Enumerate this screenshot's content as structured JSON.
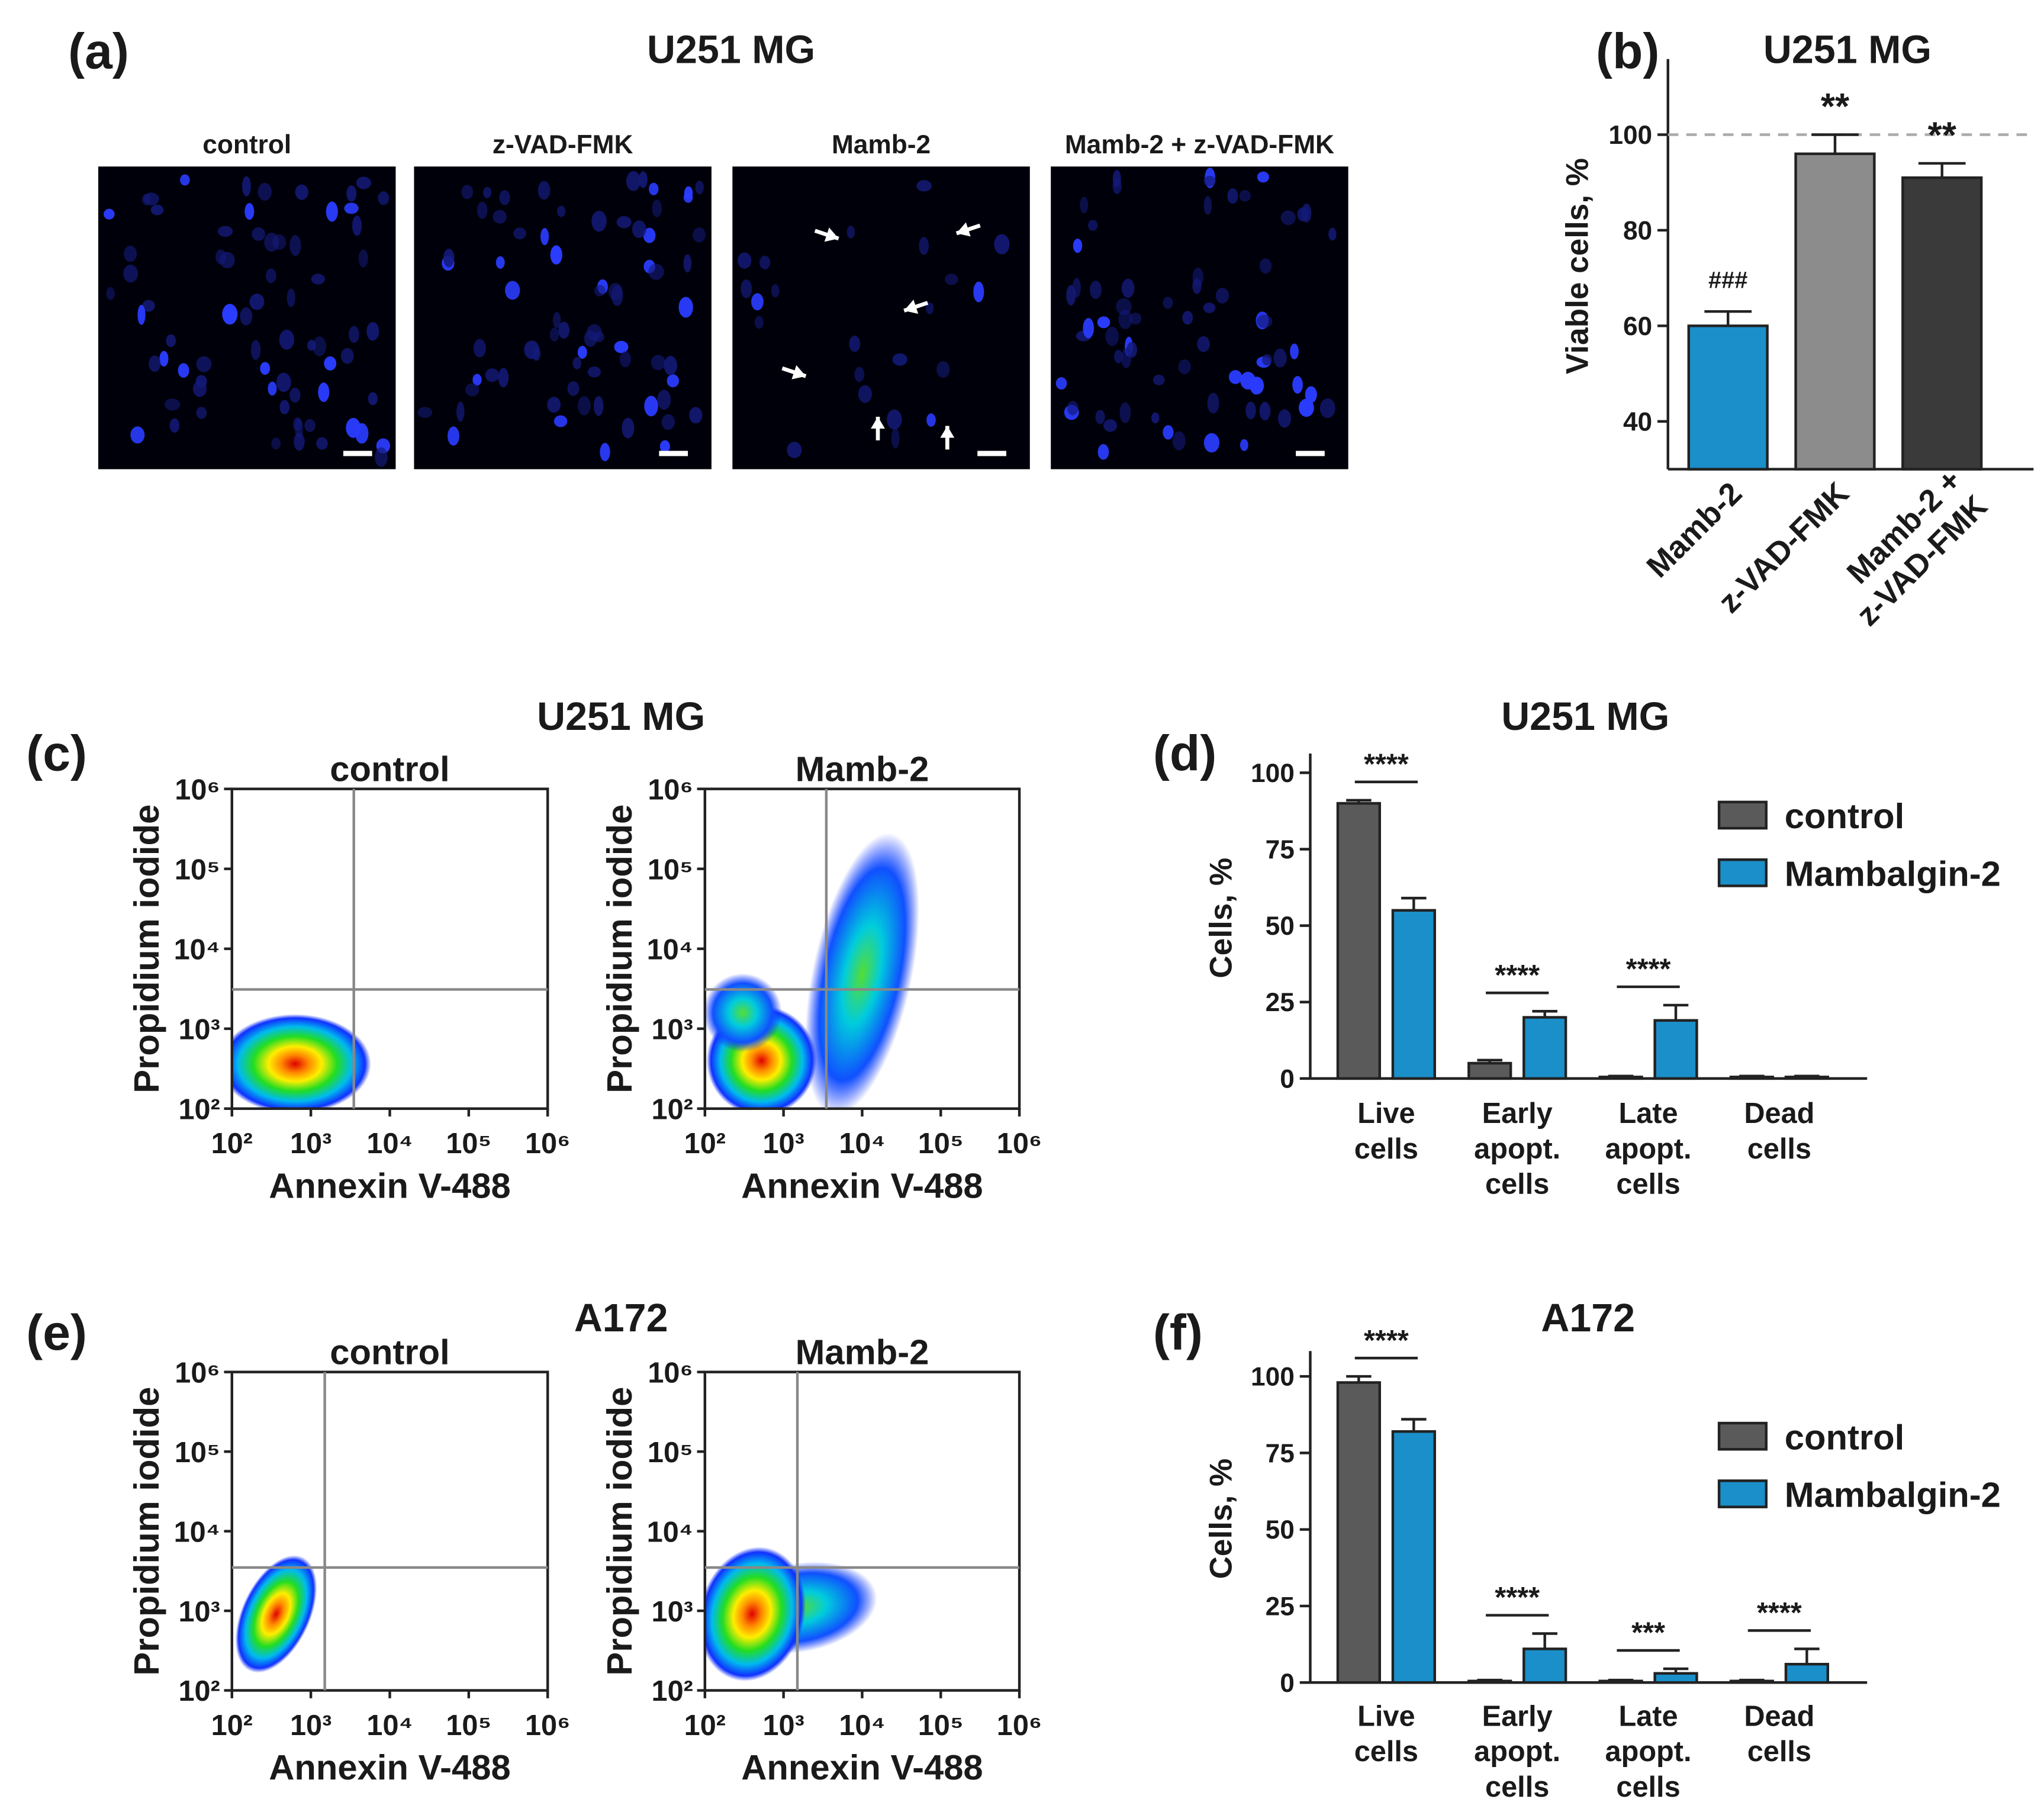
{
  "figure": {
    "panel_a": {
      "label": "(a)",
      "title": "U251 MG",
      "image_labels": [
        "control",
        "z-VAD-FMK",
        "Mamb-2",
        "Mamb-2 + z-VAD-FMK"
      ]
    }
  },
  "chart_data": [
    {
      "type": "bar",
      "panel_label": "(b)",
      "title": "U251 MG",
      "y_label": "Viable cells, %",
      "categories": [
        "Mamb-2",
        "z-VAD-FMK",
        "Mamb-2 +\nz-VAD-FMK"
      ],
      "values": [
        60,
        96,
        91
      ],
      "errors": [
        3,
        4,
        3
      ],
      "colors": [
        "#1a8fc9",
        "#8c8c8c",
        "#3a3a3a"
      ],
      "annotations": [
        "###",
        "**",
        "**"
      ],
      "reference_line": 100,
      "ylim": [
        30,
        115
      ],
      "yticks": [
        40,
        60,
        80,
        100
      ]
    },
    {
      "type": "density",
      "panel_label": "(c)",
      "group_title": "U251 MG",
      "title": "control",
      "x_label": "Annexin V-488",
      "y_label": "Propidium iodide",
      "xscale": "log",
      "yscale": "log",
      "xlim": [
        100,
        1000000
      ],
      "ylim": [
        100,
        1000000
      ],
      "xticks": [
        {
          "value": 100,
          "label": "10²"
        },
        {
          "value": 1000,
          "label": "10³"
        },
        {
          "value": 10000,
          "label": "10⁴"
        },
        {
          "value": 100000,
          "label": "10⁵"
        },
        {
          "value": 1000000,
          "label": "10⁶"
        }
      ],
      "yticks": [
        {
          "value": 100,
          "label": "10²"
        },
        {
          "value": 1000,
          "label": "10³"
        },
        {
          "value": 10000,
          "label": "10⁴"
        },
        {
          "value": 100000,
          "label": "10⁵"
        },
        {
          "value": 1000000,
          "label": "10⁶"
        }
      ],
      "gates": {
        "x": 3500,
        "y": 3100
      }
    },
    {
      "type": "density",
      "title": "Mamb-2",
      "x_label": "Annexin V-488",
      "y_label": "Propidium iodide",
      "xscale": "log",
      "yscale": "log",
      "xlim": [
        100,
        1000000
      ],
      "ylim": [
        100,
        1000000
      ],
      "xticks": [
        {
          "value": 100,
          "label": "10²"
        },
        {
          "value": 1000,
          "label": "10³"
        },
        {
          "value": 10000,
          "label": "10⁴"
        },
        {
          "value": 100000,
          "label": "10⁵"
        },
        {
          "value": 1000000,
          "label": "10⁶"
        }
      ],
      "yticks": [
        {
          "value": 100,
          "label": "10²"
        },
        {
          "value": 1000,
          "label": "10³"
        },
        {
          "value": 10000,
          "label": "10⁴"
        },
        {
          "value": 100000,
          "label": "10⁵"
        },
        {
          "value": 1000000,
          "label": "10⁶"
        }
      ],
      "gates": {
        "x": 3500,
        "y": 3100
      }
    },
    {
      "type": "bar",
      "panel_label": "(d)",
      "title": "U251 MG",
      "y_label": "Cells, %",
      "categories": [
        "Live\ncells",
        "Early\napopt.\ncells",
        "Late\napopt.\ncells",
        "Dead\ncells"
      ],
      "series": [
        {
          "name": "control",
          "color": "#5a5a5a",
          "values": [
            90,
            5,
            0.5,
            0.5
          ],
          "errors": [
            1,
            1,
            0.3,
            0.3
          ]
        },
        {
          "name": "Mambalgin-2",
          "color": "#1a8fc9",
          "values": [
            55,
            20,
            19,
            0.5
          ],
          "errors": [
            4,
            2,
            5,
            0.3
          ]
        }
      ],
      "annotations": [
        "****",
        "****",
        "****",
        null
      ],
      "ylim": [
        0,
        105
      ],
      "yticks": [
        0,
        25,
        50,
        75,
        100
      ]
    },
    {
      "type": "density",
      "panel_label": "(e)",
      "group_title": "A172",
      "title": "control",
      "x_label": "Annexin V-488",
      "y_label": "Propidium iodide",
      "xscale": "log",
      "yscale": "log",
      "xlim": [
        100,
        1000000
      ],
      "ylim": [
        100,
        1000000
      ],
      "xticks": [
        {
          "value": 100,
          "label": "10²"
        },
        {
          "value": 1000,
          "label": "10³"
        },
        {
          "value": 10000,
          "label": "10⁴"
        },
        {
          "value": 100000,
          "label": "10⁵"
        },
        {
          "value": 1000000,
          "label": "10⁶"
        }
      ],
      "yticks": [
        {
          "value": 100,
          "label": "10²"
        },
        {
          "value": 1000,
          "label": "10³"
        },
        {
          "value": 10000,
          "label": "10⁴"
        },
        {
          "value": 100000,
          "label": "10⁵"
        },
        {
          "value": 1000000,
          "label": "10⁶"
        }
      ],
      "gates": {
        "x": 1500,
        "y": 3500
      }
    },
    {
      "type": "density",
      "title": "Mamb-2",
      "x_label": "Annexin V-488",
      "y_label": "Propidium iodide",
      "xscale": "log",
      "yscale": "log",
      "xlim": [
        100,
        1000000
      ],
      "ylim": [
        100,
        1000000
      ],
      "xticks": [
        {
          "value": 100,
          "label": "10²"
        },
        {
          "value": 1000,
          "label": "10³"
        },
        {
          "value": 10000,
          "label": "10⁴"
        },
        {
          "value": 100000,
          "label": "10⁵"
        },
        {
          "value": 1000000,
          "label": "10⁶"
        }
      ],
      "yticks": [
        {
          "value": 100,
          "label": "10²"
        },
        {
          "value": 1000,
          "label": "10³"
        },
        {
          "value": 10000,
          "label": "10⁴"
        },
        {
          "value": 100000,
          "label": "10⁵"
        },
        {
          "value": 1000000,
          "label": "10⁶"
        }
      ],
      "gates": {
        "x": 1500,
        "y": 3500
      }
    },
    {
      "type": "bar",
      "panel_label": "(f)",
      "title": "A172",
      "y_label": "Cells, %",
      "categories": [
        "Live\ncells",
        "Early\napopt.\ncells",
        "Late\napopt.\ncells",
        "Dead\ncells"
      ],
      "series": [
        {
          "name": "control",
          "color": "#5a5a5a",
          "values": [
            98,
            0.5,
            0.5,
            0.5
          ],
          "errors": [
            2,
            0.3,
            0.3,
            0.3
          ]
        },
        {
          "name": "Mambalgin-2",
          "color": "#1a8fc9",
          "values": [
            82,
            11,
            3,
            6
          ],
          "errors": [
            4,
            5,
            1.5,
            5
          ]
        }
      ],
      "annotations": [
        "****",
        "****",
        "***",
        "****"
      ],
      "ylim": [
        0,
        107
      ],
      "yticks": [
        0,
        25,
        50,
        75,
        100
      ]
    }
  ]
}
